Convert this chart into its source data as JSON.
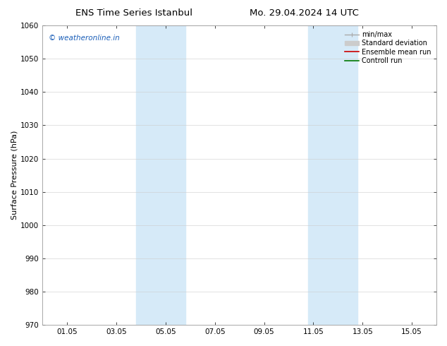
{
  "title_left": "ENS Time Series Istanbul",
  "title_right": "Mo. 29.04.2024 14 UTC",
  "ylabel": "Surface Pressure (hPa)",
  "ylim": [
    970,
    1060
  ],
  "yticks": [
    970,
    980,
    990,
    1000,
    1010,
    1020,
    1030,
    1040,
    1050,
    1060
  ],
  "xlim": [
    0.0,
    16.0
  ],
  "xtick_positions": [
    1,
    3,
    5,
    7,
    9,
    11,
    13,
    15
  ],
  "xtick_labels": [
    "01.05",
    "03.05",
    "05.05",
    "07.05",
    "09.05",
    "11.05",
    "13.05",
    "15.05"
  ],
  "shaded_bands": [
    {
      "xmin": 3.8,
      "xmax": 5.8
    },
    {
      "xmin": 10.8,
      "xmax": 12.8
    }
  ],
  "shade_color": "#d6eaf8",
  "watermark": "© weatheronline.in",
  "watermark_color": "#1a5eb8",
  "legend_items": [
    {
      "label": "min/max",
      "color": "#aaaaaa",
      "lw": 1.0,
      "ls": "-",
      "type": "errorbar"
    },
    {
      "label": "Standard deviation",
      "color": "#cccccc",
      "lw": 5,
      "ls": "-",
      "type": "patch"
    },
    {
      "label": "Ensemble mean run",
      "color": "#cc0000",
      "lw": 1.2,
      "ls": "-",
      "type": "line"
    },
    {
      "label": "Controll run",
      "color": "#007700",
      "lw": 1.2,
      "ls": "-",
      "type": "line"
    }
  ],
  "bg_color": "#ffffff",
  "axes_bg_color": "#ffffff",
  "grid_color": "#cccccc",
  "title_fontsize": 9.5,
  "label_fontsize": 8,
  "tick_fontsize": 7.5,
  "legend_fontsize": 7,
  "watermark_fontsize": 7.5
}
